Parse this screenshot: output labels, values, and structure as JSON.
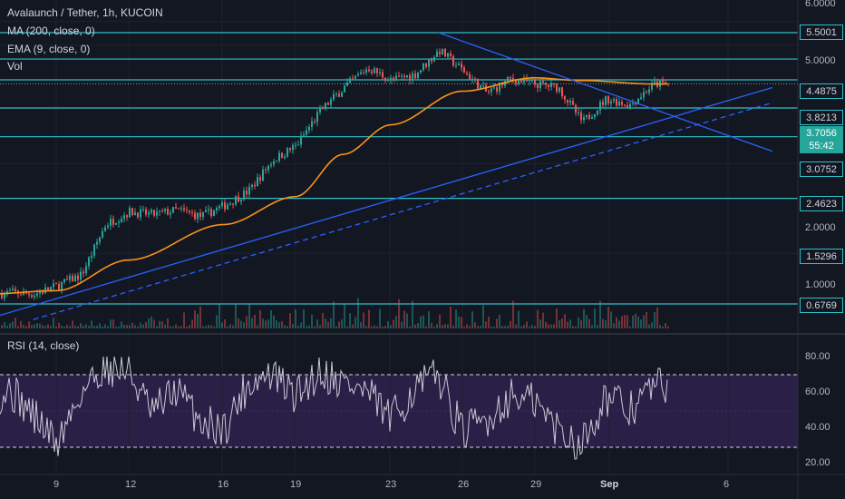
{
  "legend": {
    "title": "Avalaunch / Tether, 1h, KUCOIN",
    "ma": "MA (200, close, 0)",
    "ema": "EMA (9, close, 0)",
    "vol": "Vol",
    "rsi": "RSI (14, close)"
  },
  "colors": {
    "background": "#131722",
    "horizontal_levels": "#2ec0c9",
    "trendlines": "#2962ff",
    "ma_line": "#f7931a",
    "up": "#26a69a",
    "down": "#ef5350",
    "rsi_line": "#c9c9d4",
    "rsi_band": "#2a1f47"
  },
  "current_price": {
    "value": "3.7056",
    "countdown": "55:42"
  },
  "chart_data": [
    {
      "type": "candlestick",
      "title": "Avalaunch / Tether, 1h, KUCOIN",
      "y_scale": "log",
      "y_ticks": [
        "6.0000",
        "5.0000",
        "2.0000",
        "1.0000"
      ],
      "x_ticks": [
        "9",
        "12",
        "16",
        "19",
        "23",
        "26",
        "29",
        "Sep",
        "6"
      ],
      "horizontal_levels": [
        "5.5001",
        "4.4875",
        "3.8213",
        "3.0752",
        "2.4623",
        "1.5296",
        "0.6769"
      ],
      "close_series": {
        "x": [
          "Aug 6",
          "Aug 7",
          "Aug 8",
          "Aug 9",
          "Aug 10",
          "Aug 11",
          "Aug 12",
          "Aug 13",
          "Aug 14",
          "Aug 15",
          "Aug 16",
          "Aug 17",
          "Aug 18",
          "Aug 19",
          "Aug 20",
          "Aug 21",
          "Aug 22",
          "Aug 23",
          "Aug 24",
          "Aug 25",
          "Aug 26",
          "Aug 27",
          "Aug 28",
          "Aug 29",
          "Aug 30",
          "Aug 31",
          "Sep 1",
          "Sep 2",
          "Sep 3"
        ],
        "values": [
          0.72,
          0.74,
          0.73,
          0.78,
          0.85,
          1.25,
          1.38,
          1.35,
          1.4,
          1.33,
          1.45,
          1.62,
          2.05,
          2.3,
          3.0,
          3.6,
          4.2,
          3.8,
          4.0,
          4.8,
          4.1,
          3.45,
          3.85,
          3.7,
          3.6,
          2.75,
          3.3,
          3.15,
          3.7
        ]
      },
      "ma_200": {
        "x": [
          "Aug 6",
          "Aug 9",
          "Aug 12",
          "Aug 16",
          "Aug 19",
          "Aug 21",
          "Aug 23",
          "Aug 26",
          "Aug 29",
          "Aug 31",
          "Sep 3"
        ],
        "values": [
          0.73,
          0.75,
          0.95,
          1.25,
          1.55,
          2.15,
          2.7,
          3.5,
          3.88,
          3.8,
          3.7
        ]
      },
      "trendlines": [
        {
          "from": [
            "Aug 6",
            0.6
          ],
          "to": [
            "Sep 8",
            3.6
          ],
          "style": "solid"
        },
        {
          "from": [
            "Aug 8",
            0.6
          ],
          "to": [
            "Sep 8",
            3.2
          ],
          "style": "dashed"
        },
        {
          "from": [
            "Aug 25",
            5.5
          ],
          "to": [
            "Sep 8",
            2.2
          ],
          "style": "solid"
        }
      ]
    },
    {
      "type": "line",
      "title": "RSI (14, close)",
      "y_ticks": [
        "80.00",
        "60.00",
        "40.00",
        "20.00"
      ],
      "ylim": [
        20,
        80
      ],
      "band": [
        30,
        70
      ],
      "x": [
        "Aug 6",
        "Aug 7",
        "Aug 8",
        "Aug 9",
        "Aug 10",
        "Aug 11",
        "Aug 12",
        "Aug 13",
        "Aug 14",
        "Aug 15",
        "Aug 16",
        "Aug 17",
        "Aug 18",
        "Aug 19",
        "Aug 20",
        "Aug 21",
        "Aug 22",
        "Aug 23",
        "Aug 24",
        "Aug 25",
        "Aug 26",
        "Aug 27",
        "Aug 28",
        "Aug 29",
        "Aug 30",
        "Aug 31",
        "Sep 1",
        "Sep 2",
        "Sep 3"
      ],
      "values": [
        55,
        62,
        48,
        32,
        60,
        75,
        72,
        48,
        62,
        45,
        40,
        65,
        70,
        58,
        72,
        66,
        60,
        45,
        62,
        70,
        38,
        45,
        58,
        55,
        40,
        32,
        58,
        50,
        64
      ]
    }
  ]
}
